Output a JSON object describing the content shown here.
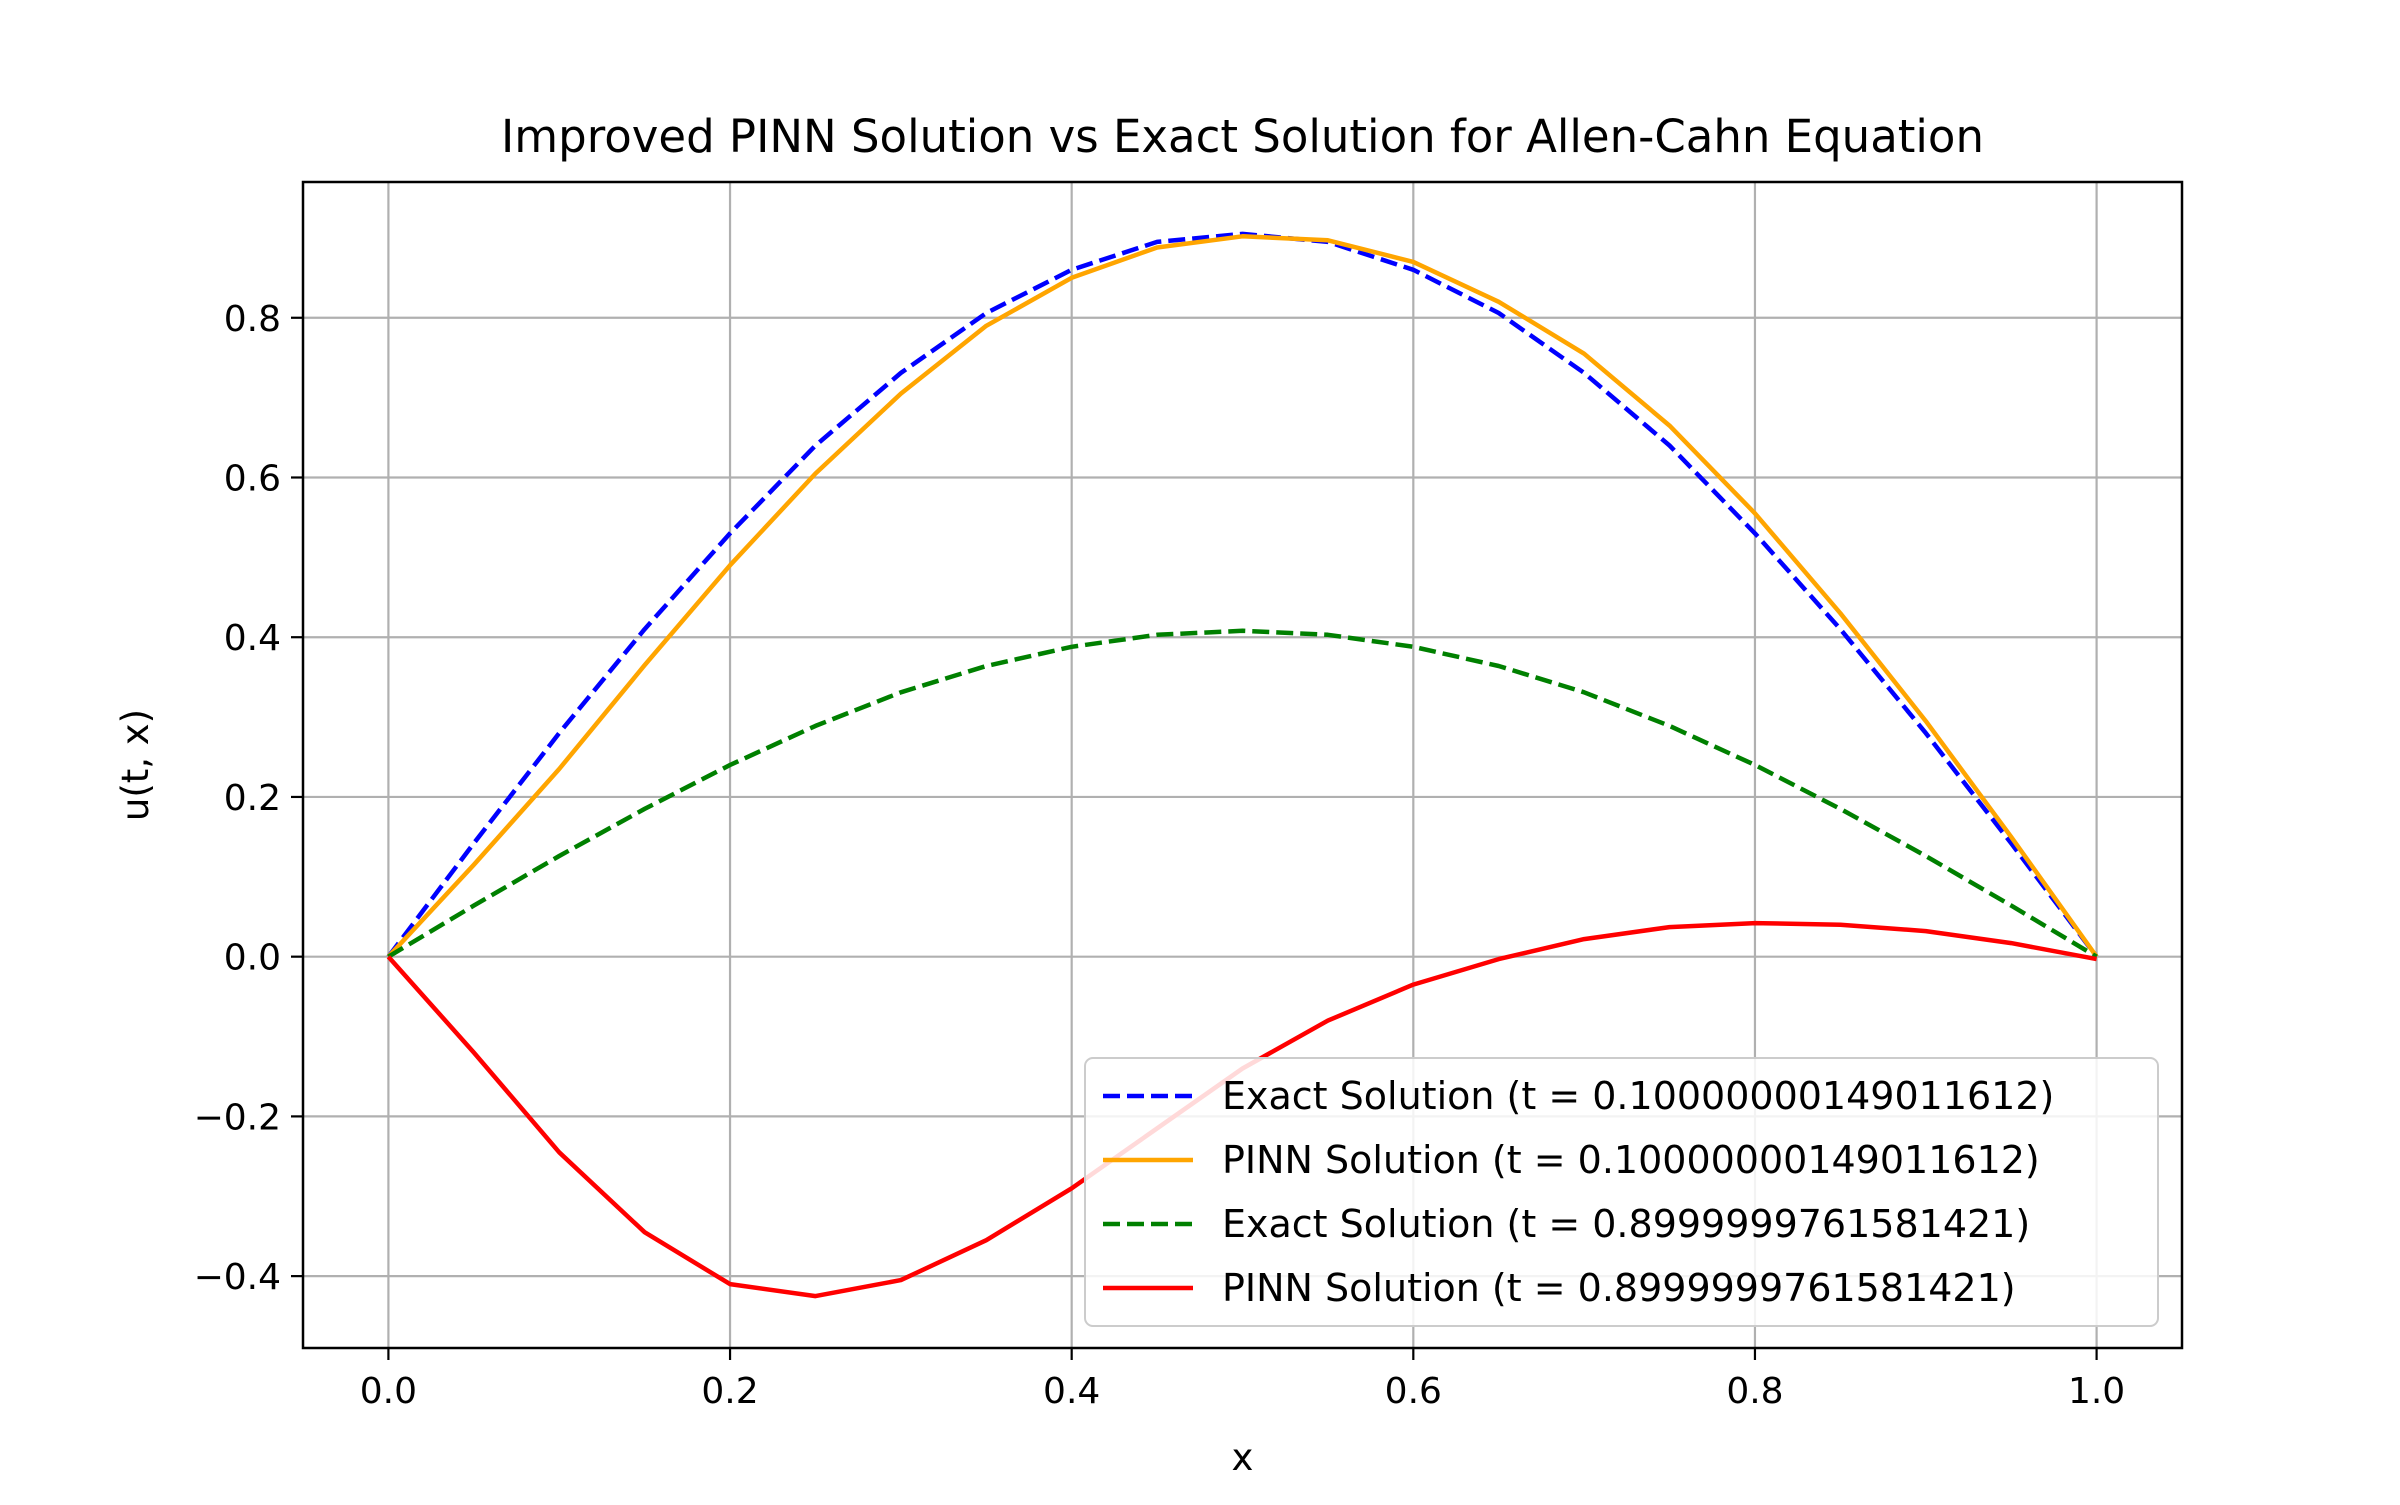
{
  "chart_data": {
    "type": "line",
    "title": "Improved PINN Solution vs Exact Solution for Allen-Cahn Equation",
    "xlabel": "x",
    "ylabel": "u(t, x)",
    "xlim": [
      -0.05,
      1.05
    ],
    "ylim": [
      -0.49,
      0.97
    ],
    "xticks": [
      0.0,
      0.2,
      0.4,
      0.6,
      0.8,
      1.0
    ],
    "xtick_labels": [
      "0.0",
      "0.2",
      "0.4",
      "0.6",
      "0.8",
      "1.0"
    ],
    "yticks": [
      -0.4,
      -0.2,
      0.0,
      0.2,
      0.4,
      0.6,
      0.8
    ],
    "ytick_labels": [
      "−0.4",
      "−0.2",
      "0.0",
      "0.2",
      "0.4",
      "0.6",
      "0.8"
    ],
    "grid": true,
    "legend_position": "lower-right",
    "series": [
      {
        "name": "Exact Solution (t = 0.10000000149011612)",
        "color": "#0000ff",
        "style": "dashed",
        "x": [
          0.0,
          0.05,
          0.1,
          0.15,
          0.2,
          0.25,
          0.3,
          0.35,
          0.4,
          0.45,
          0.5,
          0.55,
          0.6,
          0.65,
          0.7,
          0.75,
          0.8,
          0.85,
          0.9,
          0.95,
          1.0
        ],
        "y": [
          0.0,
          0.142,
          0.28,
          0.41,
          0.53,
          0.64,
          0.731,
          0.806,
          0.86,
          0.895,
          0.905,
          0.895,
          0.86,
          0.806,
          0.731,
          0.64,
          0.53,
          0.41,
          0.28,
          0.142,
          0.0
        ]
      },
      {
        "name": "PINN Solution (t = 0.10000000149011612)",
        "color": "#ffa500",
        "style": "solid",
        "x": [
          0.0,
          0.05,
          0.1,
          0.15,
          0.2,
          0.25,
          0.3,
          0.35,
          0.4,
          0.45,
          0.5,
          0.55,
          0.6,
          0.65,
          0.7,
          0.75,
          0.8,
          0.85,
          0.9,
          0.95,
          1.0
        ],
        "y": [
          0.0,
          0.115,
          0.235,
          0.365,
          0.49,
          0.605,
          0.705,
          0.79,
          0.85,
          0.888,
          0.902,
          0.897,
          0.87,
          0.82,
          0.755,
          0.665,
          0.555,
          0.43,
          0.295,
          0.15,
          0.0
        ]
      },
      {
        "name": "Exact Solution (t = 0.8999999761581421)",
        "color": "#008000",
        "style": "dashed",
        "x": [
          0.0,
          0.05,
          0.1,
          0.15,
          0.2,
          0.25,
          0.3,
          0.35,
          0.4,
          0.45,
          0.5,
          0.55,
          0.6,
          0.65,
          0.7,
          0.75,
          0.8,
          0.85,
          0.9,
          0.95,
          1.0
        ],
        "y": [
          0.0,
          0.064,
          0.126,
          0.185,
          0.24,
          0.289,
          0.331,
          0.364,
          0.388,
          0.403,
          0.408,
          0.403,
          0.388,
          0.364,
          0.331,
          0.289,
          0.24,
          0.185,
          0.126,
          0.064,
          0.0
        ]
      },
      {
        "name": "PINN Solution (t = 0.8999999761581421)",
        "color": "#ff0000",
        "style": "solid",
        "x": [
          0.0,
          0.05,
          0.1,
          0.15,
          0.2,
          0.25,
          0.3,
          0.35,
          0.4,
          0.45,
          0.5,
          0.55,
          0.6,
          0.65,
          0.7,
          0.75,
          0.8,
          0.85,
          0.9,
          0.95,
          1.0
        ],
        "y": [
          0.0,
          -0.12,
          -0.245,
          -0.345,
          -0.41,
          -0.425,
          -0.405,
          -0.355,
          -0.29,
          -0.215,
          -0.14,
          -0.08,
          -0.035,
          -0.003,
          0.022,
          0.037,
          0.042,
          0.04,
          0.032,
          0.017,
          -0.003
        ]
      }
    ]
  }
}
